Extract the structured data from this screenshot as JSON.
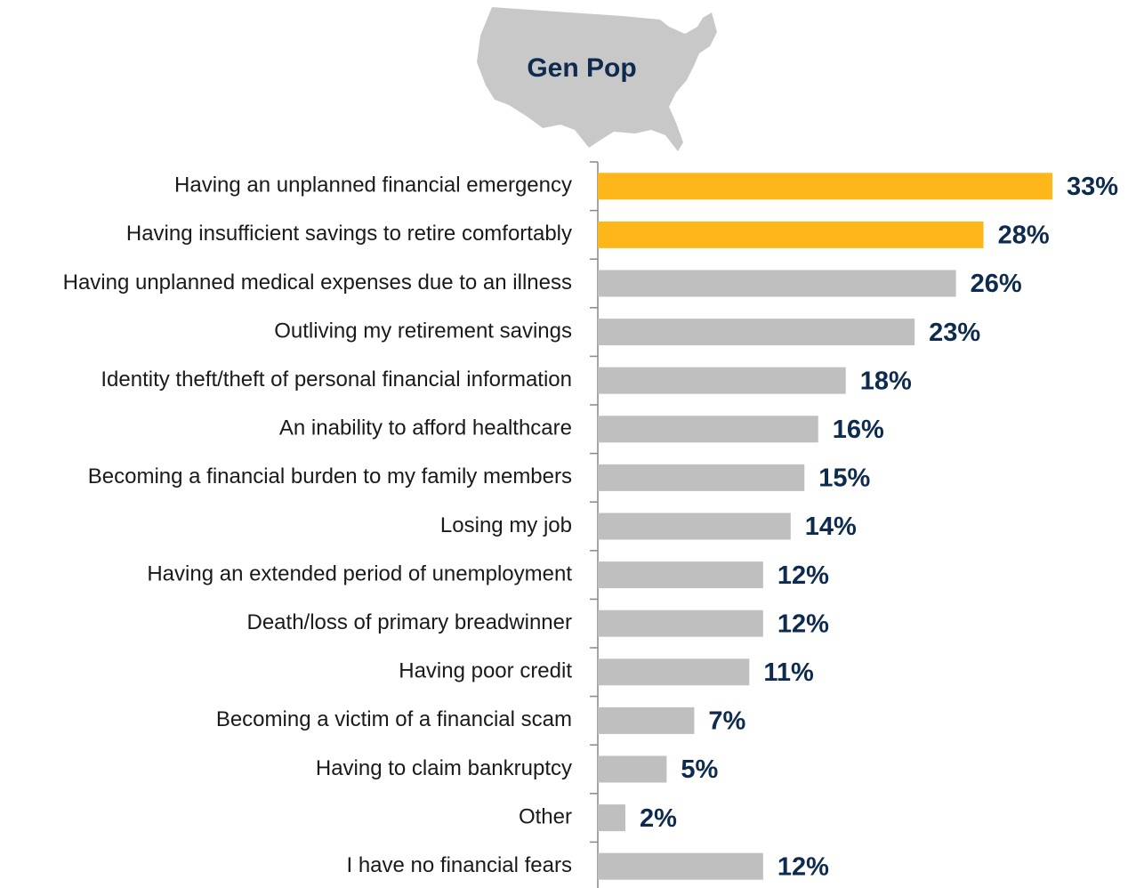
{
  "chart_data": {
    "type": "hbar",
    "title": "Gen Pop",
    "categories": [
      "Having an unplanned financial emergency",
      "Having insufficient savings to retire comfortably",
      "Having unplanned medical expenses due to an illness",
      "Outliving my retirement savings",
      "Identity theft/theft of personal financial information",
      "An inability to afford healthcare",
      "Becoming a financial burden to my family members",
      "Losing my job",
      "Having an extended period of unemployment",
      "Death/loss of primary breadwinner",
      "Having poor credit",
      "Becoming a victim of a financial scam",
      "Having to claim bankruptcy",
      "Other",
      "I have no financial fears"
    ],
    "values": [
      33,
      28,
      26,
      23,
      18,
      16,
      15,
      14,
      12,
      12,
      11,
      7,
      5,
      2,
      12
    ],
    "value_labels": [
      "33%",
      "28%",
      "26%",
      "23%",
      "18%",
      "16%",
      "15%",
      "14%",
      "12%",
      "12%",
      "11%",
      "7%",
      "5%",
      "2%",
      "12%"
    ],
    "colors": [
      "#fdb71a",
      "#fdb71a",
      "#bfbfbf",
      "#bfbfbf",
      "#bfbfbf",
      "#bfbfbf",
      "#bfbfbf",
      "#bfbfbf",
      "#bfbfbf",
      "#bfbfbf",
      "#bfbfbf",
      "#bfbfbf",
      "#bfbfbf",
      "#bfbfbf",
      "#bfbfbf"
    ]
  }
}
